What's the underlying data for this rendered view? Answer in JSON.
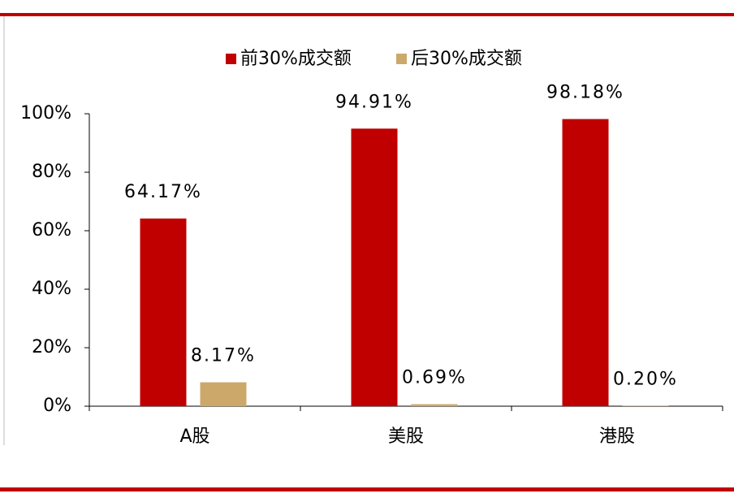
{
  "chart_data": {
    "type": "bar",
    "categories": [
      "A股",
      "美股",
      "港股"
    ],
    "series": [
      {
        "name": "前30%成交额",
        "color": "#c00000",
        "values": [
          64.17,
          94.91,
          98.18
        ],
        "value_labels": [
          "64.17%",
          "94.91%",
          "98.18%"
        ]
      },
      {
        "name": "后30%成交额",
        "color": "#cca86a",
        "values": [
          8.17,
          0.69,
          0.2
        ],
        "value_labels": [
          "8.17%",
          "0.69%",
          "0.20%"
        ]
      }
    ],
    "ylim": [
      0,
      100
    ],
    "yticks": [
      {
        "value": 0,
        "label": "0%"
      },
      {
        "value": 20,
        "label": "20%"
      },
      {
        "value": 40,
        "label": "40%"
      },
      {
        "value": 60,
        "label": "60%"
      },
      {
        "value": 80,
        "label": "80%"
      },
      {
        "value": 100,
        "label": "100%"
      }
    ],
    "legend": "top"
  }
}
